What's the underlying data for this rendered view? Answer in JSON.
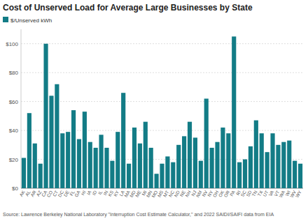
{
  "chart_data": {
    "type": "bar",
    "title": "Cost of Unserved Load for Average Large Businesses by State",
    "source": "Source: Lawrence Berkeley National Laboratory \"Interruption Cost Estimate Calculator,\" and 2022 SAIDI/SAIFI data from EIA",
    "categories": [
      "AK",
      "AL",
      "AR",
      "AZ",
      "CA",
      "CO",
      "CT",
      "DC",
      "DE",
      "FL",
      "GA",
      "HI",
      "IA",
      "ID",
      "IL",
      "IN",
      "KS",
      "KY",
      "LA",
      "MA",
      "MD",
      "ME",
      "MI",
      "MN",
      "MO",
      "MS",
      "MT",
      "NC",
      "ND",
      "NE",
      "NH",
      "NJ",
      "NM",
      "NV",
      "NY",
      "OH",
      "OK",
      "OR",
      "PA",
      "RI",
      "SC",
      "SD",
      "TN",
      "TX",
      "UT",
      "VA",
      "VT",
      "WA",
      "WI",
      "WV",
      "WY"
    ],
    "series": [
      {
        "name": "$/Unserved kWh",
        "color": "#137c86",
        "values": [
          21,
          52,
          31,
          17,
          100,
          64,
          72,
          38,
          39,
          54,
          34,
          53,
          32,
          28,
          37,
          28,
          19,
          39,
          66,
          17,
          42,
          31,
          46,
          28,
          10,
          17,
          22,
          18,
          30,
          36,
          46,
          35,
          19,
          62,
          28,
          32,
          42,
          38,
          105,
          18,
          20,
          29,
          47,
          38,
          25,
          38,
          30,
          32,
          33,
          19,
          17
        ]
      }
    ],
    "ylim": [
      0,
      110
    ],
    "yticks": [
      {
        "value": 0,
        "label": "$0"
      },
      {
        "value": 20,
        "label": "$20"
      },
      {
        "value": 40,
        "label": "$40"
      },
      {
        "value": 60,
        "label": "$60"
      },
      {
        "value": 80,
        "label": "$80"
      },
      {
        "value": 100,
        "label": "$100"
      }
    ],
    "grid": true,
    "legend": "top-left"
  }
}
